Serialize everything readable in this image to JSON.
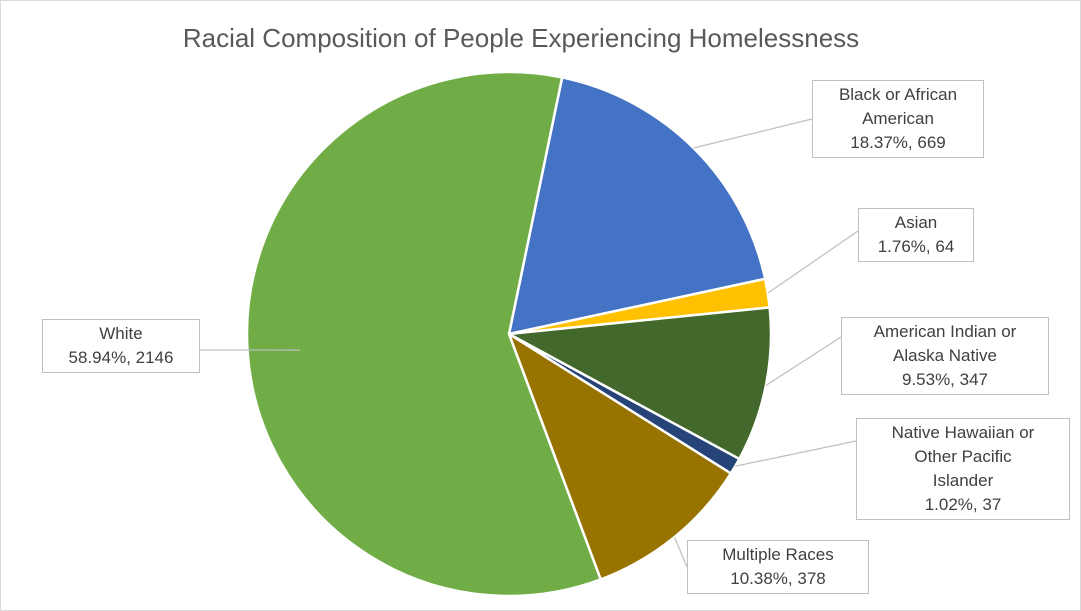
{
  "chart_data": {
    "type": "pie",
    "title": "Racial Composition of People Experiencing Homelessness",
    "slices": [
      {
        "name": "Black or African American",
        "lines": [
          "Black or African",
          "American",
          "18.37%, 669"
        ],
        "percent": 18.37,
        "value": 669,
        "color": "#4472c4"
      },
      {
        "name": "Asian",
        "lines": [
          "Asian",
          "1.76%, 64"
        ],
        "percent": 1.76,
        "value": 64,
        "color": "#ffc000"
      },
      {
        "name": "American Indian or Alaska Native",
        "lines": [
          "American Indian or",
          "Alaska Native",
          "9.53%, 347"
        ],
        "percent": 9.53,
        "value": 347,
        "color": "#43682b"
      },
      {
        "name": "Native Hawaiian or Other Pacific Islander",
        "lines": [
          "Native Hawaiian or",
          "Other Pacific",
          "Islander",
          "1.02%, 37"
        ],
        "percent": 1.02,
        "value": 37,
        "color": "#264478"
      },
      {
        "name": "Multiple Races",
        "lines": [
          "Multiple Races",
          "10.38%, 378"
        ],
        "percent": 10.38,
        "value": 378,
        "color": "#997300"
      },
      {
        "name": "White",
        "lines": [
          "White",
          "58.94%, 2146"
        ],
        "percent": 58.94,
        "value": 2146,
        "color": "#70ad47"
      }
    ],
    "legend": "none"
  }
}
